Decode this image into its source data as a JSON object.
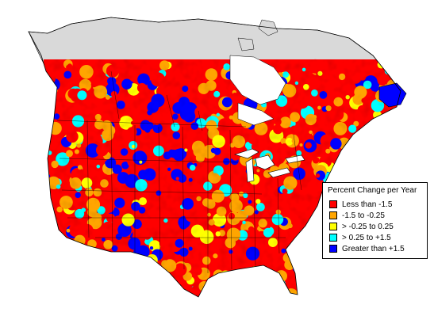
{
  "legend": {
    "title": "Percent Change per Year",
    "items": [
      {
        "label": "Less than -1.5",
        "color": "#ff0000"
      },
      {
        "label": "-1.5 to -0.25",
        "color": "#ffa500"
      },
      {
        "label": "> -0.25 to 0.25",
        "color": "#ffff00"
      },
      {
        "label": "> 0.25 to +1.5",
        "color": "#00ffff"
      },
      {
        "label": "Greater than +1.5",
        "color": "#0000ff"
      }
    ]
  },
  "map_colors": {
    "no_data": "#d9d9d9",
    "water": "#ffffff",
    "boundary": "#000000"
  }
}
